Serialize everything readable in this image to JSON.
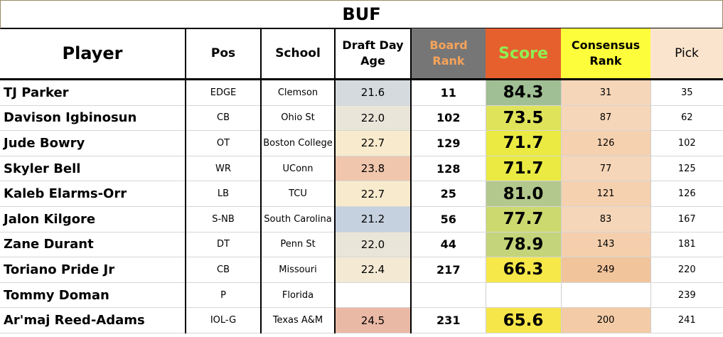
{
  "title": "BUF",
  "headers": {
    "player": "Player",
    "pos": "Pos",
    "school": "School",
    "age_line1": "Draft Day",
    "age_line2": "Age",
    "board_line1": "Board",
    "board_line2": "Rank",
    "score": "Score",
    "consensus_line1": "Consensus",
    "consensus_line2": "Rank",
    "pick": "Pick"
  },
  "rows": [
    {
      "player": "TJ Parker",
      "pos": "EDGE",
      "school": "Clemson",
      "age": "21.6",
      "age_color": "#d4dadd",
      "board_rank": "11",
      "score": "84.3",
      "score_color": "#a0bf94",
      "consensus": "31",
      "consensus_color": "#f6d6b8",
      "pick": "35"
    },
    {
      "player": "Davison Igbinosun",
      "pos": "CB",
      "school": "Ohio St",
      "age": "22.0",
      "age_color": "#e9e5d9",
      "board_rank": "102",
      "score": "73.5",
      "score_color": "#dfe35a",
      "consensus": "87",
      "consensus_color": "#f6d6b8",
      "pick": "62"
    },
    {
      "player": "Jude Bowry",
      "pos": "OT",
      "school": "Boston College",
      "age": "22.7",
      "age_color": "#f8ebcd",
      "board_rank": "129",
      "score": "71.7",
      "score_color": "#eaea43",
      "consensus": "126",
      "consensus_color": "#f5d1b0",
      "pick": "102"
    },
    {
      "player": "Skyler Bell",
      "pos": "WR",
      "school": "UConn",
      "age": "23.8",
      "age_color": "#f0c6ad",
      "board_rank": "128",
      "score": "71.7",
      "score_color": "#eaea43",
      "consensus": "77",
      "consensus_color": "#f6d6b8",
      "pick": "125"
    },
    {
      "player": "Kaleb Elarms-Orr",
      "pos": "LB",
      "school": "TCU",
      "age": "22.7",
      "age_color": "#f8ebcd",
      "board_rank": "25",
      "score": "81.0",
      "score_color": "#b3c88c",
      "consensus": "121",
      "consensus_color": "#f5d1b0",
      "pick": "126"
    },
    {
      "player": "Jalon Kilgore",
      "pos": "S-NB",
      "school": "South Carolina",
      "age": "21.2",
      "age_color": "#c6d1df",
      "board_rank": "56",
      "score": "77.7",
      "score_color": "#cbd96e",
      "consensus": "83",
      "consensus_color": "#f6d6b8",
      "pick": "167"
    },
    {
      "player": "Zane Durant",
      "pos": "DT",
      "school": "Penn St",
      "age": "22.0",
      "age_color": "#e9e5d9",
      "board_rank": "44",
      "score": "78.9",
      "score_color": "#c3d47a",
      "consensus": "143",
      "consensus_color": "#f5cfad",
      "pick": "181"
    },
    {
      "player": "Toriano Pride Jr",
      "pos": "CB",
      "school": "Missouri",
      "age": "22.4",
      "age_color": "#f4ead4",
      "board_rank": "217",
      "score": "66.3",
      "score_color": "#f7e84a",
      "consensus": "249",
      "consensus_color": "#f2c49c",
      "pick": "220"
    },
    {
      "player": "Tommy Doman",
      "pos": "P",
      "school": "Florida",
      "age": "",
      "age_color": "#ffffff",
      "board_rank": "",
      "score": "",
      "score_color": "#ffffff",
      "consensus": "",
      "consensus_color": "#ffffff",
      "pick": "239"
    },
    {
      "player": "Ar'maj Reed-Adams",
      "pos": "IOL-G",
      "school": "Texas A&M",
      "age": "24.5",
      "age_color": "#eab9a6",
      "board_rank": "231",
      "score": "65.6",
      "score_color": "#f7e649",
      "consensus": "200",
      "consensus_color": "#f3cba6",
      "pick": "241"
    }
  ]
}
